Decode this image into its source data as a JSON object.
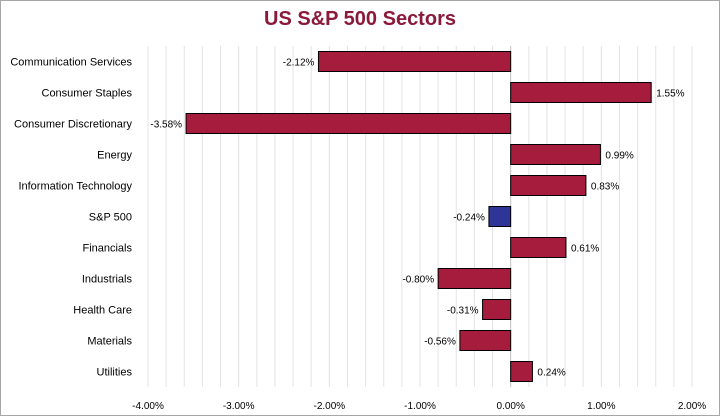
{
  "chart_data": {
    "type": "bar",
    "orientation": "horizontal",
    "title": "US S&P 500 Sectors",
    "categories": [
      "Communication Services",
      "Consumer Staples",
      "Consumer Discretionary",
      "Energy",
      "Information Technology",
      "S&P 500",
      "Financials",
      "Industrials",
      "Health Care",
      "Materials",
      "Utilities"
    ],
    "values": [
      -2.12,
      1.55,
      -3.58,
      0.99,
      0.83,
      -0.24,
      0.61,
      -0.8,
      -0.31,
      -0.56,
      0.24
    ],
    "value_labels": [
      "-2.12%",
      "1.55%",
      "-3.58%",
      "0.99%",
      "0.83%",
      "-0.24%",
      "0.61%",
      "-0.80%",
      "-0.31%",
      "-0.56%",
      "0.24%"
    ],
    "xlim": [
      -4.0,
      2.0
    ],
    "xticks": [
      -4,
      -3,
      -2,
      -1,
      0,
      1,
      2
    ],
    "xtick_labels": [
      "-4.00%",
      "-3.00%",
      "-2.00%",
      "-1.00%",
      "0.00%",
      "1.00%",
      "2.00%"
    ],
    "xlabel": "",
    "ylabel": "",
    "grid": true,
    "colors": {
      "default_bar": "#a61c3c",
      "highlight_bar": "#2e3596",
      "title": "#8b1a3a",
      "grid": "#e3e3e3",
      "axis": "#bfbfbf"
    },
    "highlight_category": "S&P 500"
  }
}
